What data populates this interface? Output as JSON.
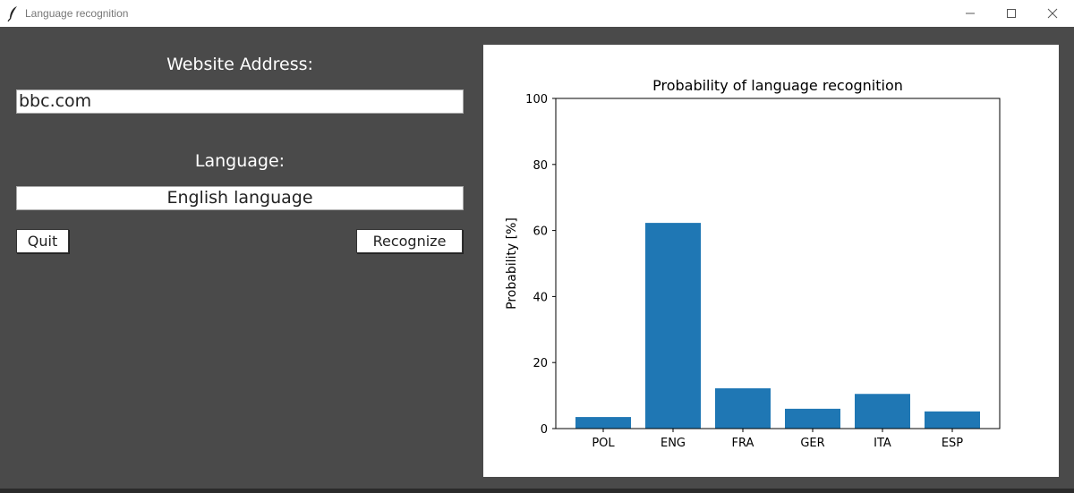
{
  "window": {
    "title": "Language recognition",
    "icon": "feather-icon",
    "controls": [
      "minimize-icon",
      "maximize-icon",
      "close-icon"
    ]
  },
  "form": {
    "address_label": "Website Address:",
    "address_value": "bbc.com",
    "language_label": "Language:",
    "language_value": "English language",
    "quit_label": "Quit",
    "recognize_label": "Recognize"
  },
  "colors": {
    "bar": "#1f77b4",
    "window_bg": "#4a4a4a"
  },
  "chart_data": {
    "type": "bar",
    "title": "Probability of language recognition",
    "xlabel": "",
    "ylabel": "Probability [%]",
    "categories": [
      "POL",
      "ENG",
      "FRA",
      "GER",
      "ITA",
      "ESP"
    ],
    "values": [
      3.5,
      62.3,
      12.2,
      6.0,
      10.5,
      5.2
    ],
    "ylim": [
      0,
      100
    ],
    "yticks": [
      "0",
      "20",
      "40",
      "60",
      "80",
      "100"
    ],
    "grid": false,
    "legend": "none"
  }
}
